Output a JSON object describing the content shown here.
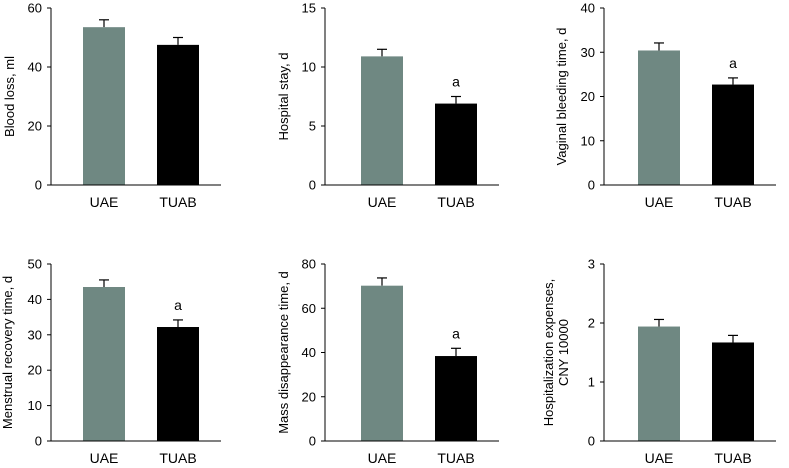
{
  "colors": {
    "uae": "#6f8882",
    "tuab": "#000000",
    "axis": "#000000"
  },
  "chart_data": [
    {
      "type": "bar",
      "title": "",
      "xlabel": "",
      "ylabel": "Blood loss, ml",
      "ylim": [
        0,
        60
      ],
      "yticks": [
        "0",
        "20",
        "40",
        "60"
      ],
      "categories": [
        "UAE",
        "TUAB"
      ],
      "values": [
        53.5,
        47.5
      ],
      "errors": [
        2.5,
        2.5
      ],
      "annotations": [
        "",
        ""
      ]
    },
    {
      "type": "bar",
      "title": "",
      "xlabel": "",
      "ylabel": "Hospital stay, d",
      "ylim": [
        0,
        15
      ],
      "yticks": [
        "0",
        "5",
        "10",
        "15"
      ],
      "categories": [
        "UAE",
        "TUAB"
      ],
      "values": [
        10.9,
        6.9
      ],
      "errors": [
        0.6,
        0.6
      ],
      "annotations": [
        "",
        "a"
      ]
    },
    {
      "type": "bar",
      "title": "",
      "xlabel": "",
      "ylabel": "Vaginal bleeding time, d",
      "ylim": [
        0,
        40
      ],
      "yticks": [
        "0",
        "10",
        "20",
        "30",
        "40"
      ],
      "categories": [
        "UAE",
        "TUAB"
      ],
      "values": [
        30.4,
        22.7
      ],
      "errors": [
        1.7,
        1.5
      ],
      "annotations": [
        "",
        "a"
      ]
    },
    {
      "type": "bar",
      "title": "",
      "xlabel": "",
      "ylabel": "Menstrual recovery time, d",
      "ylim": [
        0,
        50
      ],
      "yticks": [
        "0",
        "10",
        "20",
        "30",
        "40",
        "50"
      ],
      "categories": [
        "UAE",
        "TUAB"
      ],
      "values": [
        43.5,
        32.2
      ],
      "errors": [
        2.0,
        2.0
      ],
      "annotations": [
        "",
        "a"
      ]
    },
    {
      "type": "bar",
      "title": "",
      "xlabel": "",
      "ylabel": "Mass disappearance time, d",
      "ylim": [
        0,
        80
      ],
      "yticks": [
        "0",
        "20",
        "40",
        "60",
        "80"
      ],
      "categories": [
        "UAE",
        "TUAB"
      ],
      "values": [
        70.2,
        38.4
      ],
      "errors": [
        3.5,
        3.5
      ],
      "annotations": [
        "",
        "a"
      ]
    },
    {
      "type": "bar",
      "title": "",
      "xlabel": "",
      "ylabel": [
        "Hospitalization expenses,",
        "CNY 10000"
      ],
      "ylim": [
        0,
        3
      ],
      "yticks": [
        "0",
        "1",
        "2",
        "3"
      ],
      "categories": [
        "UAE",
        "TUAB"
      ],
      "values": [
        1.94,
        1.67
      ],
      "errors": [
        0.12,
        0.12
      ],
      "annotations": [
        "",
        ""
      ]
    }
  ]
}
